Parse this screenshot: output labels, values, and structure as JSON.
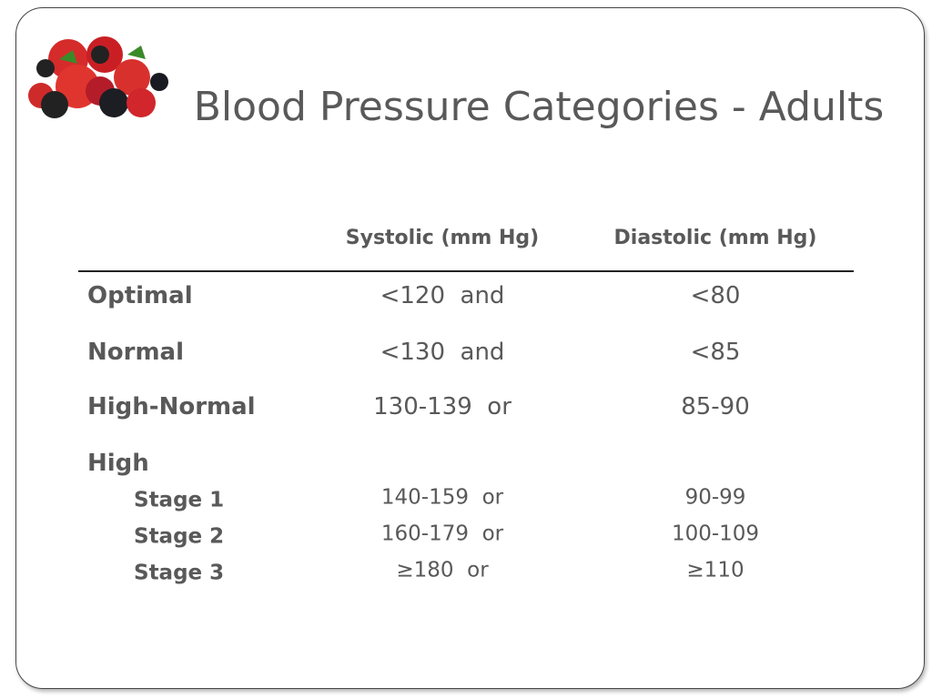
{
  "title": "Blood Pressure Categories - Adults",
  "table": {
    "columns": [
      "Systolic (mm Hg)",
      "Diastolic (mm Hg)"
    ],
    "rows": [
      {
        "label": "Optimal",
        "systolic": "<120  and",
        "diastolic": "<80"
      },
      {
        "label": "Normal",
        "systolic": "<130  and",
        "diastolic": "<85"
      },
      {
        "label": "High-Normal",
        "systolic": "130-139  or",
        "diastolic": "85-90"
      }
    ],
    "group": {
      "label": "High",
      "rows": [
        {
          "label": "Stage 1",
          "systolic": "140-159  or",
          "diastolic": "90-99"
        },
        {
          "label": "Stage 2",
          "systolic": "160-179  or",
          "diastolic": "100-109"
        },
        {
          "label": "Stage 3",
          "systolic": "≥180  or",
          "diastolic": "≥110"
        }
      ]
    }
  }
}
